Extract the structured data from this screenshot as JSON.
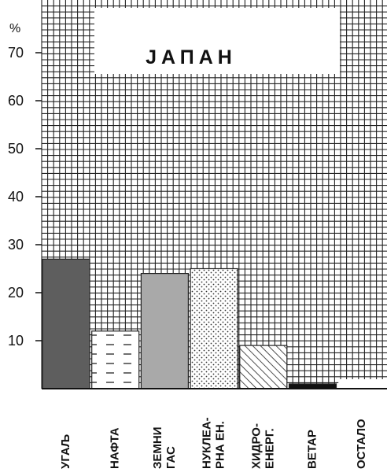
{
  "chart_data": {
    "type": "bar",
    "title": "ЈАПАН",
    "ylabel": "%",
    "ylim": [
      0,
      80
    ],
    "yticks": [
      10,
      20,
      30,
      40,
      50,
      60,
      70
    ],
    "categories": [
      [
        "УГАЉ"
      ],
      [
        "НАФТА"
      ],
      [
        "ЗЕМНИ",
        "ГАС"
      ],
      [
        "НУКЛЕА-",
        "РНА ЕН."
      ],
      [
        "ХИДРО-",
        "ЕНЕРГ."
      ],
      [
        "ВЕТАР"
      ],
      [
        "ОСТАЛО"
      ]
    ],
    "values": [
      27,
      12,
      24,
      25,
      9,
      1,
      0
    ],
    "fills": [
      "solid-dark-gray",
      "dashed",
      "solid-light-gray",
      "dotted",
      "diagonal-hatch",
      "solid-black",
      "none"
    ],
    "colors": {
      "dark": "#5e5e5e",
      "light": "#a9a9a9",
      "black": "#111111",
      "grid": "#222222"
    },
    "grid": true,
    "legend": "none"
  }
}
